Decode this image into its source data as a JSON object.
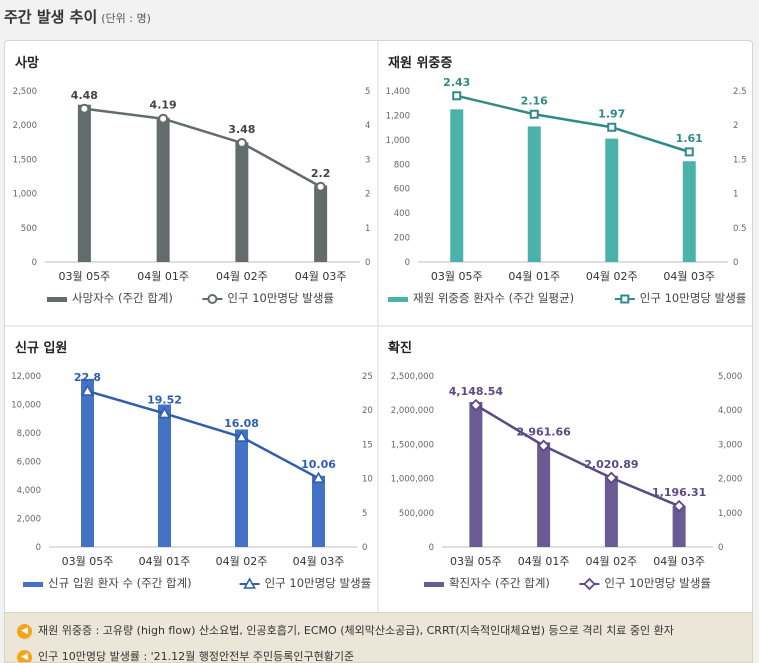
{
  "header": {
    "title": "주간 발생 추이",
    "unit": "(단위 : 명)"
  },
  "notes": [
    {
      "icon": "speaker-icon",
      "text": "재원 위중증 : 고유량 (high flow) 산소요법, 인공호흡기, ECMO (체외막산소공급), CRRT(지속적인대체요법) 등으로 격리 치료 중인 환자"
    },
    {
      "icon": "speaker-icon",
      "text": "인구 10만명당 발생률 : '21.12월 행정안전부 주민등록인구현황기준"
    }
  ],
  "chart_data": [
    {
      "type": "bar+line",
      "title": "사망",
      "categories": [
        "03월 05주",
        "04월 01주",
        "04월 02주",
        "04월 03주"
      ],
      "bar_series": {
        "name": "사망자수 (주간 합계)",
        "values": [
          2300,
          2110,
          1750,
          1120
        ],
        "color": "#636c6b"
      },
      "line_series": {
        "name": "인구 10만명당 발생률",
        "values": [
          4.48,
          4.19,
          3.48,
          2.2
        ],
        "labels": [
          "4.48",
          "4.19",
          "3.48",
          "2.2"
        ],
        "color": "#636c6b",
        "marker": "circle"
      },
      "y_left": {
        "min": 0,
        "max": 2500,
        "ticks": [
          0,
          500,
          1000,
          1500,
          2000,
          2500
        ],
        "tick_labels": [
          "0",
          "500",
          "1,000",
          "1,500",
          "2,000",
          "2,500"
        ]
      },
      "y_right": {
        "min": 0,
        "max": 5,
        "ticks": [
          0,
          1,
          2,
          3,
          4,
          5
        ],
        "tick_labels": [
          "0",
          "1",
          "2",
          "3",
          "4",
          "5"
        ]
      },
      "label_color": "#444444"
    },
    {
      "type": "bar+line",
      "title": "재원 위중증",
      "categories": [
        "03월 05주",
        "04월 01주",
        "04월 02주",
        "04월 03주"
      ],
      "bar_series": {
        "name": "재원 위중증 환자수 (주간 일평균)",
        "values": [
          1250,
          1110,
          1010,
          825
        ],
        "color": "#4ab1ab"
      },
      "line_series": {
        "name": "인구 10만명당 발생률",
        "values": [
          2.43,
          2.16,
          1.97,
          1.61
        ],
        "labels": [
          "2.43",
          "2.16",
          "1.97",
          "1.61"
        ],
        "color": "#2f8a8a",
        "marker": "square"
      },
      "y_left": {
        "min": 0,
        "max": 1400,
        "ticks": [
          0,
          200,
          400,
          600,
          800,
          1000,
          1200,
          1400
        ],
        "tick_labels": [
          "0",
          "200",
          "400",
          "600",
          "800",
          "1,000",
          "1,200",
          "1,400"
        ]
      },
      "y_right": {
        "min": 0,
        "max": 2.5,
        "ticks": [
          0,
          0.5,
          1,
          1.5,
          2,
          2.5
        ],
        "tick_labels": [
          "0",
          "0.5",
          "1",
          "1.5",
          "2",
          "2.5"
        ]
      },
      "label_color": "#2f8a8a"
    },
    {
      "type": "bar+line",
      "title": "신규 입원",
      "categories": [
        "03월 05주",
        "04월 01주",
        "04월 02주",
        "04월 03주"
      ],
      "bar_series": {
        "name": "신규 입원 환자 수 (주간 합계)",
        "values": [
          11800,
          10000,
          8250,
          5000
        ],
        "color": "#4472c4"
      },
      "line_series": {
        "name": "인구 10만명당 발생률",
        "values": [
          22.8,
          19.52,
          16.08,
          10.06
        ],
        "labels": [
          "22.8",
          "19.52",
          "16.08",
          "10.06"
        ],
        "color": "#2e5fae",
        "marker": "triangle"
      },
      "y_left": {
        "min": 0,
        "max": 12000,
        "ticks": [
          0,
          2000,
          4000,
          6000,
          8000,
          10000,
          12000
        ],
        "tick_labels": [
          "0",
          "2,000",
          "4,000",
          "6,000",
          "8,000",
          "10,000",
          "12,000"
        ]
      },
      "y_right": {
        "min": 0,
        "max": 25,
        "ticks": [
          0,
          5,
          10,
          15,
          20,
          25
        ],
        "tick_labels": [
          "0",
          "5",
          "10",
          "15",
          "20",
          "25"
        ]
      },
      "label_color": "#2e5fae"
    },
    {
      "type": "bar+line",
      "title": "확진",
      "categories": [
        "03월 05주",
        "04월 01주",
        "04월 02주",
        "04월 03주"
      ],
      "bar_series": {
        "name": "확진자수 (주간 합계)",
        "values": [
          2120000,
          1530000,
          1040000,
          600000
        ],
        "color": "#6b5b95"
      },
      "line_series": {
        "name": "인구 10만명당 발생률",
        "values": [
          4148.54,
          2961.66,
          2020.89,
          1196.31
        ],
        "labels": [
          "4,148.54",
          "2,961.66",
          "2,020.89",
          "1,196.31"
        ],
        "color": "#5a4a86",
        "marker": "diamond"
      },
      "y_left": {
        "min": 0,
        "max": 2500000,
        "ticks": [
          0,
          500000,
          1000000,
          1500000,
          2000000,
          2500000
        ],
        "tick_labels": [
          "0",
          "500,000",
          "1,000,000",
          "1,500,000",
          "2,000,000",
          "2,500,000"
        ]
      },
      "y_right": {
        "min": 0,
        "max": 5000,
        "ticks": [
          0,
          1000,
          2000,
          3000,
          4000,
          5000
        ],
        "tick_labels": [
          "0",
          "1,000",
          "2,000",
          "3,000",
          "4,000",
          "5,000"
        ]
      },
      "label_color": "#5a4a86"
    }
  ]
}
